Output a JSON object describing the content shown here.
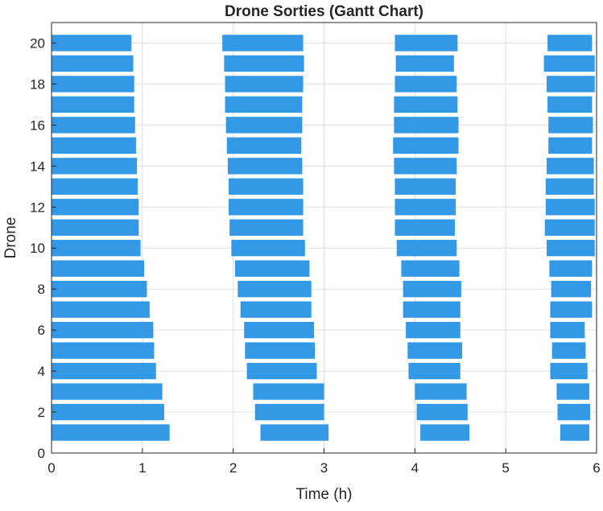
{
  "chart_data": {
    "type": "bar",
    "orientation": "horizontal-gantt",
    "title": "Drone Sorties (Gantt Chart)",
    "xlabel": "Time (h)",
    "ylabel": "Drone",
    "xlim": [
      0,
      6
    ],
    "ylim": [
      0,
      21
    ],
    "xticks": [
      0,
      1,
      2,
      3,
      4,
      5,
      6
    ],
    "yticks": [
      0,
      2,
      4,
      6,
      8,
      10,
      12,
      14,
      16,
      18,
      20
    ],
    "grid": true,
    "bar_color": "#3399e6",
    "drones": [
      {
        "drone": 1,
        "sorties": [
          [
            0.0,
            1.3
          ],
          [
            2.3,
            3.05
          ],
          [
            4.06,
            4.6
          ],
          [
            5.6,
            5.92
          ]
        ]
      },
      {
        "drone": 2,
        "sorties": [
          [
            0.0,
            1.24
          ],
          [
            2.24,
            3.0
          ],
          [
            4.02,
            4.58
          ],
          [
            5.57,
            5.93
          ]
        ]
      },
      {
        "drone": 3,
        "sorties": [
          [
            0.0,
            1.22
          ],
          [
            2.22,
            3.0
          ],
          [
            4.0,
            4.57
          ],
          [
            5.56,
            5.92
          ]
        ]
      },
      {
        "drone": 4,
        "sorties": [
          [
            0.0,
            1.15
          ],
          [
            2.15,
            2.92
          ],
          [
            3.93,
            4.5
          ],
          [
            5.49,
            5.9
          ]
        ]
      },
      {
        "drone": 5,
        "sorties": [
          [
            0.0,
            1.13
          ],
          [
            2.13,
            2.9
          ],
          [
            3.92,
            4.52
          ],
          [
            5.51,
            5.88
          ]
        ]
      },
      {
        "drone": 6,
        "sorties": [
          [
            0.0,
            1.12
          ],
          [
            2.12,
            2.89
          ],
          [
            3.9,
            4.5
          ],
          [
            5.49,
            5.87
          ]
        ]
      },
      {
        "drone": 7,
        "sorties": [
          [
            0.0,
            1.08
          ],
          [
            2.08,
            2.86
          ],
          [
            3.87,
            4.5
          ],
          [
            5.49,
            5.95
          ]
        ]
      },
      {
        "drone": 8,
        "sorties": [
          [
            0.0,
            1.05
          ],
          [
            2.05,
            2.86
          ],
          [
            3.87,
            4.51
          ],
          [
            5.5,
            5.94
          ]
        ]
      },
      {
        "drone": 9,
        "sorties": [
          [
            0.0,
            1.02
          ],
          [
            2.02,
            2.84
          ],
          [
            3.85,
            4.49
          ],
          [
            5.48,
            5.95
          ]
        ]
      },
      {
        "drone": 10,
        "sorties": [
          [
            0.0,
            0.98
          ],
          [
            1.98,
            2.79
          ],
          [
            3.8,
            4.46
          ],
          [
            5.45,
            5.98
          ]
        ]
      },
      {
        "drone": 11,
        "sorties": [
          [
            0.0,
            0.96
          ],
          [
            1.96,
            2.77
          ],
          [
            3.78,
            4.44
          ],
          [
            5.43,
            5.98
          ]
        ]
      },
      {
        "drone": 12,
        "sorties": [
          [
            0.0,
            0.96
          ],
          [
            1.95,
            2.77
          ],
          [
            3.78,
            4.45
          ],
          [
            5.44,
            5.98
          ]
        ]
      },
      {
        "drone": 13,
        "sorties": [
          [
            0.0,
            0.95
          ],
          [
            1.95,
            2.77
          ],
          [
            3.78,
            4.45
          ],
          [
            5.44,
            5.97
          ]
        ]
      },
      {
        "drone": 14,
        "sorties": [
          [
            0.0,
            0.94
          ],
          [
            1.94,
            2.76
          ],
          [
            3.77,
            4.46
          ],
          [
            5.45,
            5.97
          ]
        ]
      },
      {
        "drone": 15,
        "sorties": [
          [
            0.0,
            0.93
          ],
          [
            1.93,
            2.75
          ],
          [
            3.76,
            4.48
          ],
          [
            5.47,
            5.95
          ]
        ]
      },
      {
        "drone": 16,
        "sorties": [
          [
            0.0,
            0.92
          ],
          [
            1.92,
            2.76
          ],
          [
            3.77,
            4.48
          ],
          [
            5.47,
            5.96
          ]
        ]
      },
      {
        "drone": 17,
        "sorties": [
          [
            0.0,
            0.91
          ],
          [
            1.91,
            2.76
          ],
          [
            3.77,
            4.47
          ],
          [
            5.46,
            5.95
          ]
        ]
      },
      {
        "drone": 18,
        "sorties": [
          [
            0.0,
            0.91
          ],
          [
            1.91,
            2.77
          ],
          [
            3.78,
            4.46
          ],
          [
            5.45,
            5.98
          ]
        ]
      },
      {
        "drone": 19,
        "sorties": [
          [
            0.0,
            0.9
          ],
          [
            1.9,
            2.78
          ],
          [
            3.79,
            4.43
          ],
          [
            5.42,
            5.98
          ]
        ]
      },
      {
        "drone": 20,
        "sorties": [
          [
            0.0,
            0.88
          ],
          [
            1.88,
            2.77
          ],
          [
            3.78,
            4.47
          ],
          [
            5.46,
            5.95
          ]
        ]
      }
    ]
  }
}
